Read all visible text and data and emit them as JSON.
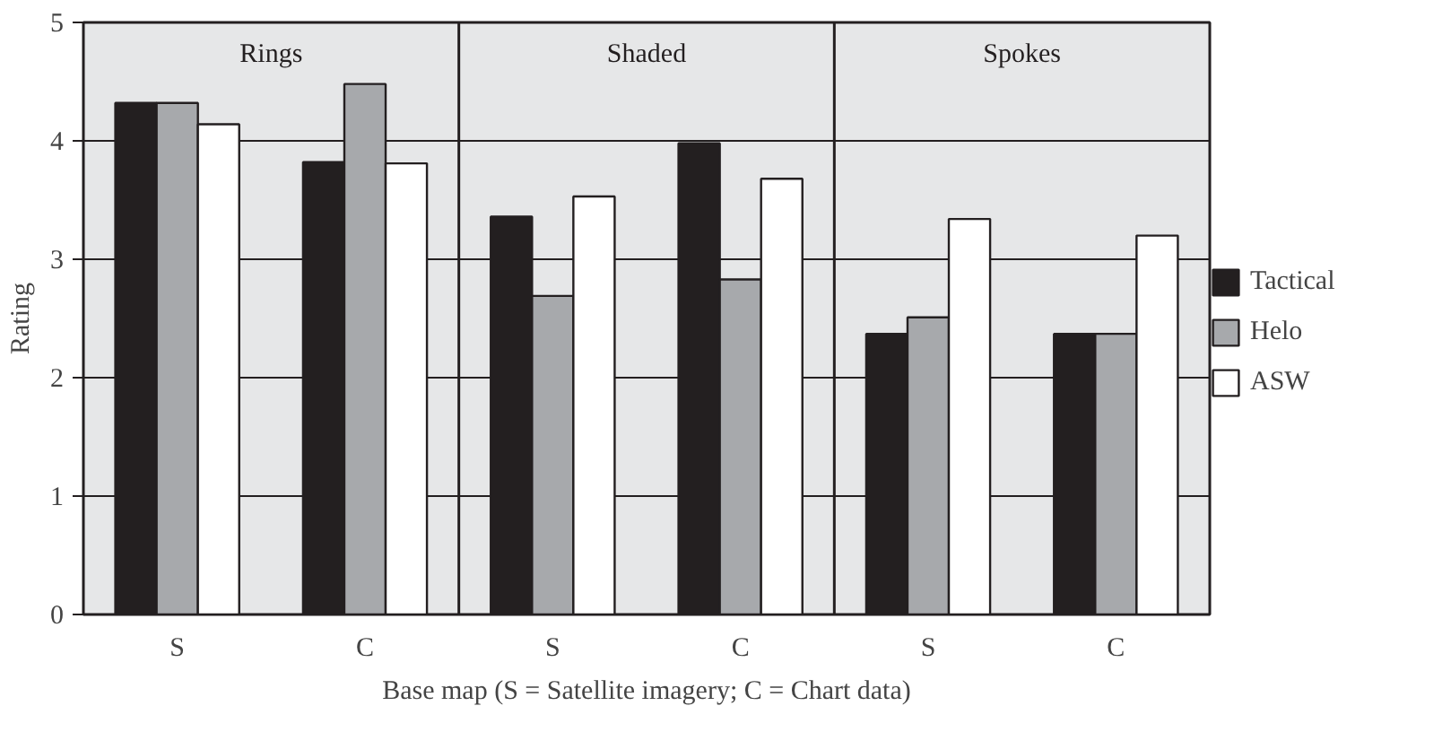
{
  "chart_data": {
    "type": "bar",
    "xlabel": "Base map (S = Satellite imagery; C = Chart data)",
    "ylabel": "Rating",
    "categories": [
      "S",
      "C",
      "S",
      "C",
      "S",
      "C"
    ],
    "series": [
      {
        "name": "Tactical",
        "color": "#231f20",
        "values": [
          4.32,
          3.82,
          3.36,
          3.98,
          2.37,
          2.37
        ]
      },
      {
        "name": "Helo",
        "color": "#a7a9ac",
        "values": [
          4.32,
          4.48,
          2.69,
          2.83,
          2.51,
          2.37
        ]
      },
      {
        "name": "ASW",
        "color": "#ffffff",
        "values": [
          4.14,
          3.81,
          3.53,
          3.68,
          3.34,
          3.2
        ]
      }
    ],
    "annotations": [
      "Rings",
      "Shaded",
      "Spokes"
    ],
    "ylim": [
      0,
      5
    ],
    "yticks": [
      0,
      1,
      2,
      3,
      4,
      5
    ],
    "grid": "y",
    "legend": "right"
  }
}
